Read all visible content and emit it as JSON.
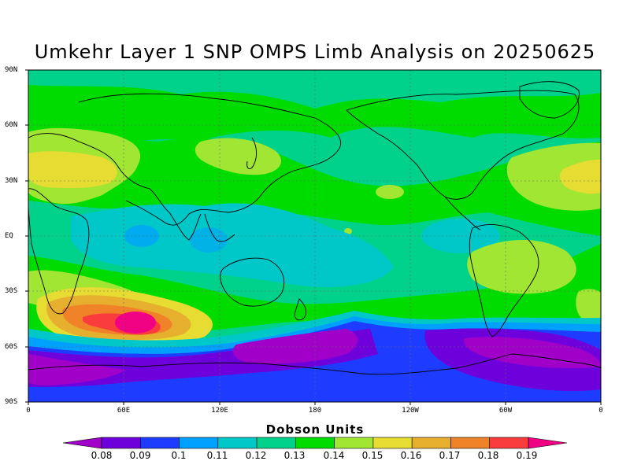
{
  "title": "Umkehr Layer 1 SNP OMPS Limb Analysis on 20250625",
  "lat_labels": [
    "90N",
    "60N",
    "30N",
    "EQ",
    "30S",
    "60S",
    "90S"
  ],
  "lon_labels": [
    "0",
    "60E",
    "120E",
    "180",
    "120W",
    "60W",
    "0"
  ],
  "colorbar": {
    "title": "Dobson Units",
    "levels": [
      "0.08",
      "0.09",
      "0.1",
      "0.11",
      "0.12",
      "0.13",
      "0.14",
      "0.15",
      "0.16",
      "0.17",
      "0.18",
      "0.19"
    ],
    "colors": [
      "#a000c8",
      "#6e00dc",
      "#1e3cff",
      "#00a0ff",
      "#00c8c8",
      "#00d28c",
      "#00dc00",
      "#a0e632",
      "#e6dc32",
      "#e6af2d",
      "#f08228",
      "#fa3c3c",
      "#f00082"
    ]
  }
}
